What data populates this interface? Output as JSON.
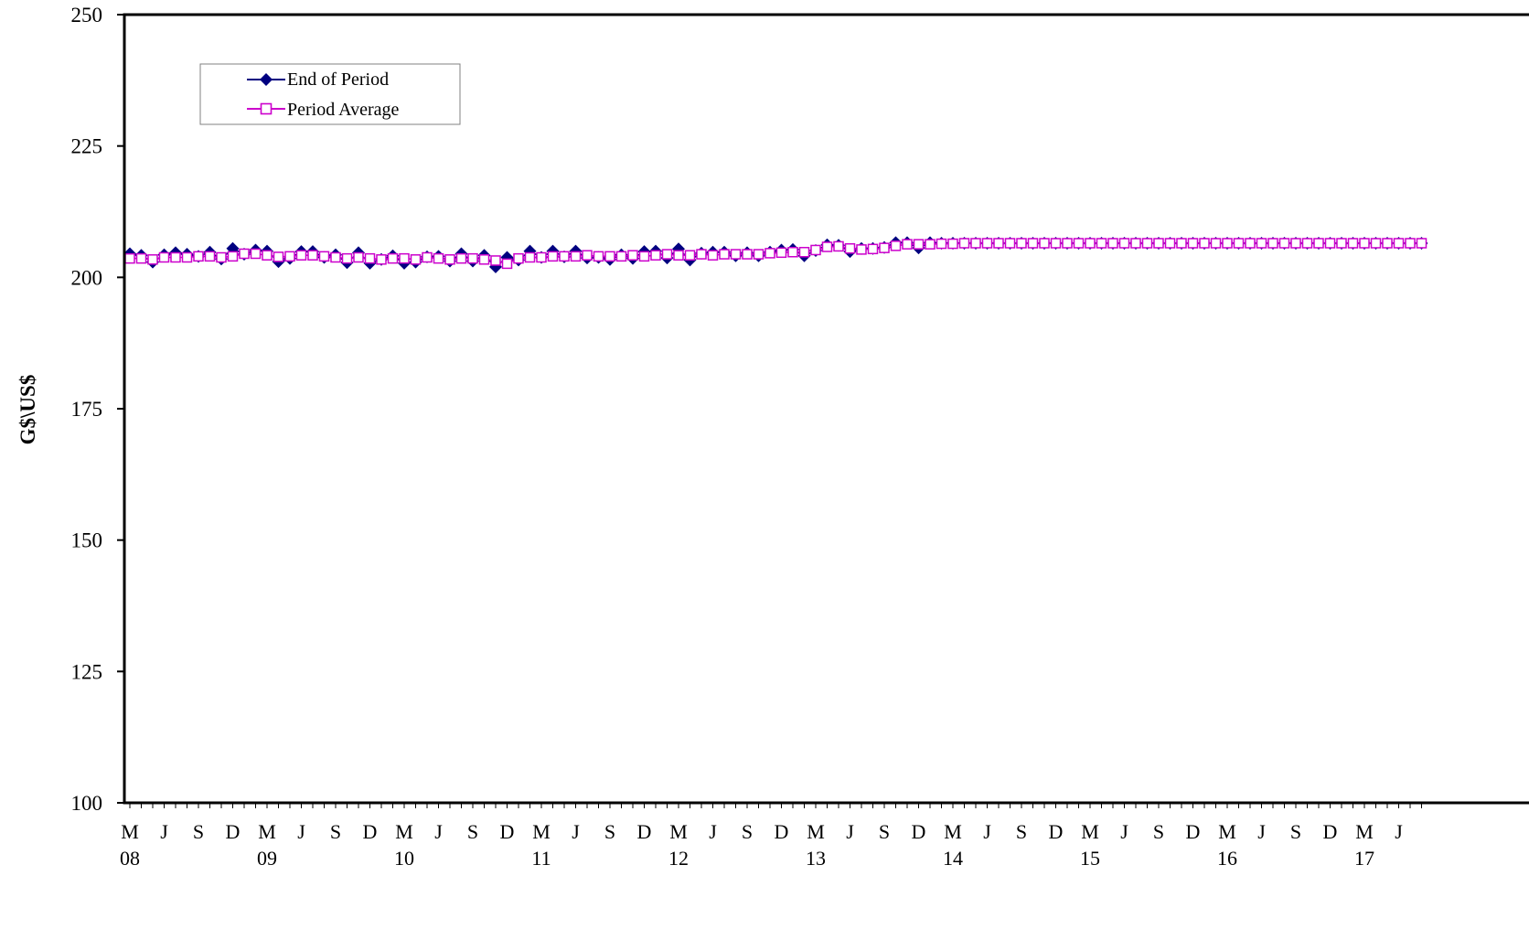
{
  "chart_data": {
    "type": "line",
    "title": "",
    "xlabel": "",
    "ylabel": "G$\\US$",
    "ylim": [
      100,
      250
    ],
    "yticks": [
      100,
      125,
      150,
      175,
      200,
      225,
      250
    ],
    "grid": false,
    "legend_position": "top-left",
    "x_month_labels": [
      "M",
      "J",
      "S",
      "D",
      "M",
      "J",
      "S",
      "D",
      "M",
      "J",
      "S",
      "D",
      "M",
      "J",
      "S",
      "D",
      "M",
      "J",
      "S",
      "D",
      "M",
      "J",
      "S",
      "D",
      "M",
      "J",
      "S",
      "D",
      "M",
      "J",
      "S",
      "D",
      "M",
      "J",
      "S",
      "D",
      "M",
      "J"
    ],
    "x_year_labels": [
      "08",
      "09",
      "10",
      "11",
      "12",
      "13",
      "14",
      "15",
      "16",
      "17"
    ],
    "x_start": "2008-03",
    "x_end": "2017-08",
    "series": [
      {
        "name": "End of Period",
        "color": "#000080",
        "marker": "filled-diamond",
        "values": [
          204.5,
          204.2,
          202.9,
          204.3,
          204.7,
          204.4,
          204.0,
          204.8,
          203.5,
          205.5,
          204.4,
          205.2,
          205.0,
          203.0,
          203.6,
          204.9,
          204.9,
          203.8,
          204.3,
          202.8,
          204.7,
          202.7,
          203.4,
          204.1,
          202.7,
          202.9,
          203.9,
          204.0,
          203.1,
          204.5,
          203.1,
          204.2,
          202.0,
          203.8,
          203.3,
          205.0,
          203.8,
          205.0,
          203.9,
          205.0,
          203.7,
          203.8,
          203.4,
          204.3,
          203.6,
          204.9,
          205.0,
          203.7,
          205.4,
          203.3,
          204.6,
          204.8,
          204.8,
          204.1,
          204.7,
          204.1,
          204.8,
          205.2,
          205.3,
          204.1,
          205.1,
          206.2,
          206.1,
          204.9,
          205.5,
          205.5,
          205.7,
          206.6,
          206.6,
          205.6,
          206.6,
          206.5,
          206.5,
          206.5,
          206.5,
          206.5,
          206.5,
          206.5,
          206.5,
          206.5,
          206.5,
          206.5,
          206.5,
          206.5,
          206.5,
          206.5,
          206.5,
          206.5,
          206.5,
          206.5,
          206.5,
          206.5,
          206.5,
          206.5,
          206.5,
          206.5,
          206.5,
          206.5,
          206.5,
          206.5,
          206.5,
          206.5,
          206.5,
          206.5,
          206.5,
          206.5,
          206.5,
          206.5,
          206.5,
          206.5,
          206.5,
          206.5,
          206.5,
          206.5
        ]
      },
      {
        "name": "Period Average",
        "color": "#cc00cc",
        "marker": "open-square",
        "values": [
          203.6,
          203.6,
          203.4,
          203.8,
          203.8,
          203.8,
          204.0,
          204.0,
          203.8,
          204.0,
          204.5,
          204.5,
          204.2,
          203.9,
          204.0,
          204.2,
          204.2,
          204.0,
          203.8,
          203.6,
          203.8,
          203.6,
          203.4,
          203.6,
          203.6,
          203.4,
          203.8,
          203.6,
          203.4,
          203.6,
          203.6,
          203.4,
          203.2,
          202.6,
          203.6,
          203.8,
          203.8,
          204.0,
          204.0,
          204.0,
          204.2,
          204.0,
          204.0,
          204.0,
          204.2,
          204.0,
          204.2,
          204.4,
          204.2,
          204.2,
          204.4,
          204.2,
          204.4,
          204.4,
          204.4,
          204.4,
          204.6,
          204.7,
          204.8,
          204.8,
          205.2,
          205.8,
          205.9,
          205.5,
          205.3,
          205.4,
          205.6,
          206.0,
          206.3,
          206.3,
          206.3,
          206.4,
          206.4,
          206.5,
          206.5,
          206.5,
          206.5,
          206.5,
          206.5,
          206.5,
          206.5,
          206.5,
          206.5,
          206.5,
          206.5,
          206.5,
          206.5,
          206.5,
          206.5,
          206.5,
          206.5,
          206.5,
          206.5,
          206.5,
          206.5,
          206.5,
          206.5,
          206.5,
          206.5,
          206.5,
          206.5,
          206.5,
          206.5,
          206.5,
          206.5,
          206.5,
          206.5,
          206.5,
          206.5,
          206.5,
          206.5,
          206.5,
          206.5,
          206.5
        ]
      }
    ]
  }
}
